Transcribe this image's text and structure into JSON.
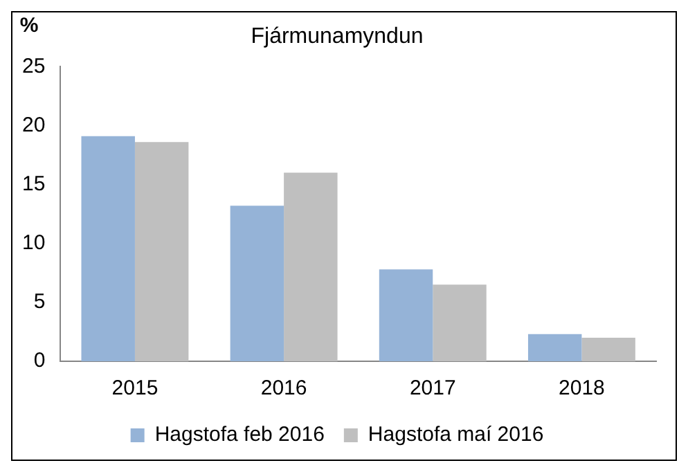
{
  "chart_data": {
    "type": "bar",
    "title": "Fjármunamyndun",
    "ylabel": "%",
    "categories": [
      "2015",
      "2016",
      "2017",
      "2018"
    ],
    "series": [
      {
        "name": "Hagstofa feb 2016",
        "color": "#95b3d7",
        "values": [
          19.1,
          13.2,
          7.8,
          2.3
        ]
      },
      {
        "name": "Hagstofa maí 2016",
        "color": "#bfbfbf",
        "values": [
          18.6,
          16.0,
          6.5,
          2.0
        ]
      }
    ],
    "ylim": [
      0,
      25
    ],
    "yticks": [
      0,
      5,
      10,
      15,
      20,
      25
    ],
    "grid": false,
    "legend": "bottom"
  }
}
